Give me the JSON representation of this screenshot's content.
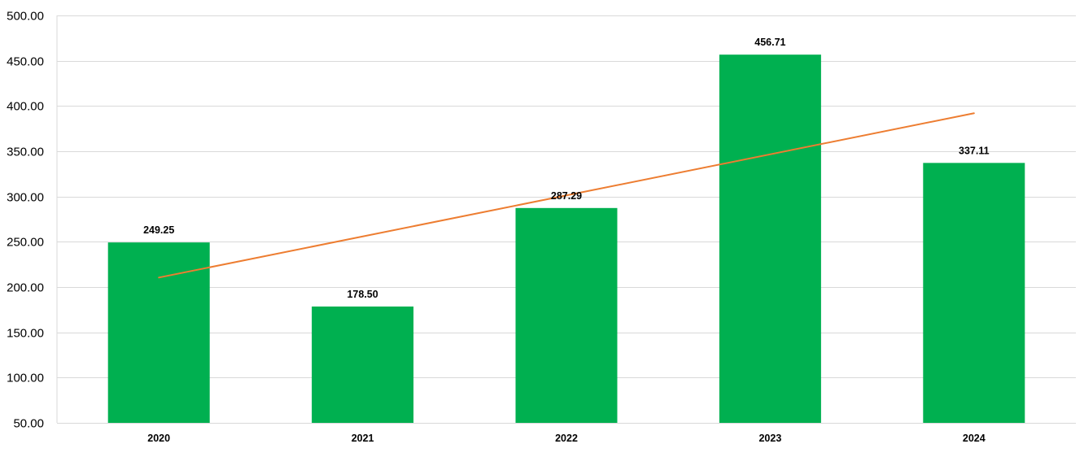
{
  "chart_data": {
    "type": "bar",
    "categories": [
      "2020",
      "2021",
      "2022",
      "2023",
      "2024"
    ],
    "series": [
      {
        "values": [
          249.25,
          178.5,
          287.29,
          456.71,
          337.11
        ]
      }
    ],
    "data_labels": [
      "249.25",
      "178.50",
      "287.29",
      "456.71",
      "337.11"
    ],
    "trendline": {
      "type": "linear",
      "start_value": 210.5,
      "end_value": 392.0
    },
    "yticks": [
      "50.00",
      "100.00",
      "150.00",
      "200.00",
      "250.00",
      "300.00",
      "350.00",
      "400.00",
      "450.00",
      "500.00"
    ],
    "ylim": [
      50,
      500
    ],
    "grid": true,
    "legend": "none",
    "title": "",
    "xlabel": "",
    "ylabel": "",
    "colors": {
      "bar": "#00B050",
      "trendline": "#ED7D31",
      "grid": "#D9D9D9"
    }
  }
}
